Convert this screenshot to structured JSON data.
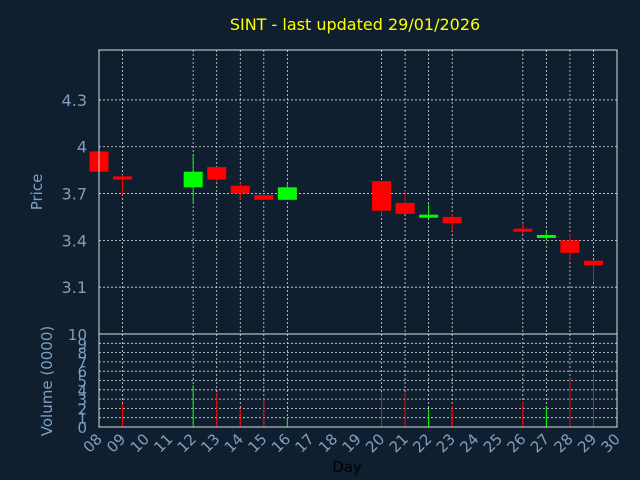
{
  "chart_data": {
    "title": "SINT - last updated 29/01/2026",
    "colors": {
      "background": "#0f1f30",
      "title": "#ffff00",
      "axis_text": "#7f9fc0",
      "grid": "#dddddd",
      "up": "#00ff00",
      "down": "#ff0000"
    },
    "price_panel": {
      "type": "candlestick",
      "ylabel": "Price",
      "ylim": [
        2.8,
        4.62
      ],
      "yticks": [
        3.1,
        3.4,
        3.7,
        4,
        4.3
      ],
      "ytick_labels": [
        "3.1",
        "3.4",
        "3.7",
        "4",
        "4.3"
      ],
      "candles": [
        {
          "day": 8,
          "open": 3.97,
          "close": 3.84,
          "high": 3.97,
          "low": 3.84
        },
        {
          "day": 9,
          "open": 3.81,
          "close": 3.79,
          "high": 3.82,
          "low": 3.69
        },
        {
          "day": 12,
          "open": 3.74,
          "close": 3.84,
          "high": 3.95,
          "low": 3.64
        },
        {
          "day": 13,
          "open": 3.87,
          "close": 3.79,
          "high": 3.87,
          "low": 3.77
        },
        {
          "day": 14,
          "open": 3.75,
          "close": 3.7,
          "high": 3.77,
          "low": 3.66
        },
        {
          "day": 15,
          "open": 3.69,
          "close": 3.66,
          "high": 3.7,
          "low": 3.66
        },
        {
          "day": 16,
          "open": 3.66,
          "close": 3.74,
          "high": 3.76,
          "low": 3.66
        },
        {
          "day": 20,
          "open": 3.78,
          "close": 3.59,
          "high": 3.78,
          "low": 3.56
        },
        {
          "day": 21,
          "open": 3.64,
          "close": 3.57,
          "high": 3.72,
          "low": 3.57
        },
        {
          "day": 22,
          "open": 3.55,
          "close": 3.56,
          "high": 3.63,
          "low": 3.54
        },
        {
          "day": 23,
          "open": 3.55,
          "close": 3.51,
          "high": 3.57,
          "low": 3.46
        },
        {
          "day": 26,
          "open": 3.47,
          "close": 3.46,
          "high": 3.51,
          "low": 3.44
        },
        {
          "day": 27,
          "open": 3.42,
          "close": 3.43,
          "high": 3.46,
          "low": 3.4
        },
        {
          "day": 28,
          "open": 3.4,
          "close": 3.32,
          "high": 3.44,
          "low": 3.27
        },
        {
          "day": 29,
          "open": 3.27,
          "close": 3.24,
          "high": 3.27,
          "low": 3.13
        }
      ]
    },
    "volume_panel": {
      "type": "bar",
      "ylabel": "Volume (0000)",
      "ylim": [
        0,
        10
      ],
      "yticks": [
        0,
        1,
        2,
        3,
        4,
        5,
        6,
        7,
        8,
        9,
        10
      ],
      "ytick_labels": [
        "0",
        "1",
        "2",
        "3",
        "4",
        "5",
        "6",
        "7",
        "8",
        "9",
        "10"
      ],
      "bars": [
        {
          "day": 9,
          "value": 2.5,
          "direction": "down"
        },
        {
          "day": 12,
          "value": 4.5,
          "direction": "up"
        },
        {
          "day": 13,
          "value": 3.7,
          "direction": "down"
        },
        {
          "day": 14,
          "value": 2.0,
          "direction": "down"
        },
        {
          "day": 15,
          "value": 3.0,
          "direction": "down"
        },
        {
          "day": 16,
          "value": 1.0,
          "direction": "up"
        },
        {
          "day": 20,
          "value": 3.7,
          "direction": "down"
        },
        {
          "day": 21,
          "value": 3.7,
          "direction": "down"
        },
        {
          "day": 22,
          "value": 2.0,
          "direction": "up"
        },
        {
          "day": 23,
          "value": 2.3,
          "direction": "down"
        },
        {
          "day": 26,
          "value": 2.7,
          "direction": "down"
        },
        {
          "day": 27,
          "value": 2.2,
          "direction": "up"
        },
        {
          "day": 28,
          "value": 5.2,
          "direction": "down"
        },
        {
          "day": 29,
          "value": 5.7,
          "direction": "down"
        }
      ]
    },
    "x_axis": {
      "xlabel": "Day",
      "xlim": [
        8,
        30
      ],
      "ticks": [
        8,
        9,
        10,
        11,
        12,
        13,
        14,
        15,
        16,
        17,
        18,
        19,
        20,
        21,
        22,
        23,
        24,
        25,
        26,
        27,
        28,
        29,
        30
      ],
      "tick_labels": [
        "08",
        "09",
        "10",
        "11",
        "12",
        "13",
        "14",
        "15",
        "16",
        "17",
        "18",
        "19",
        "20",
        "21",
        "22",
        "23",
        "24",
        "25",
        "26",
        "27",
        "28",
        "29",
        "30"
      ],
      "grid_days": [
        9,
        12,
        13,
        14,
        15,
        16,
        20,
        21,
        22,
        23,
        26,
        27,
        28,
        29
      ]
    }
  }
}
